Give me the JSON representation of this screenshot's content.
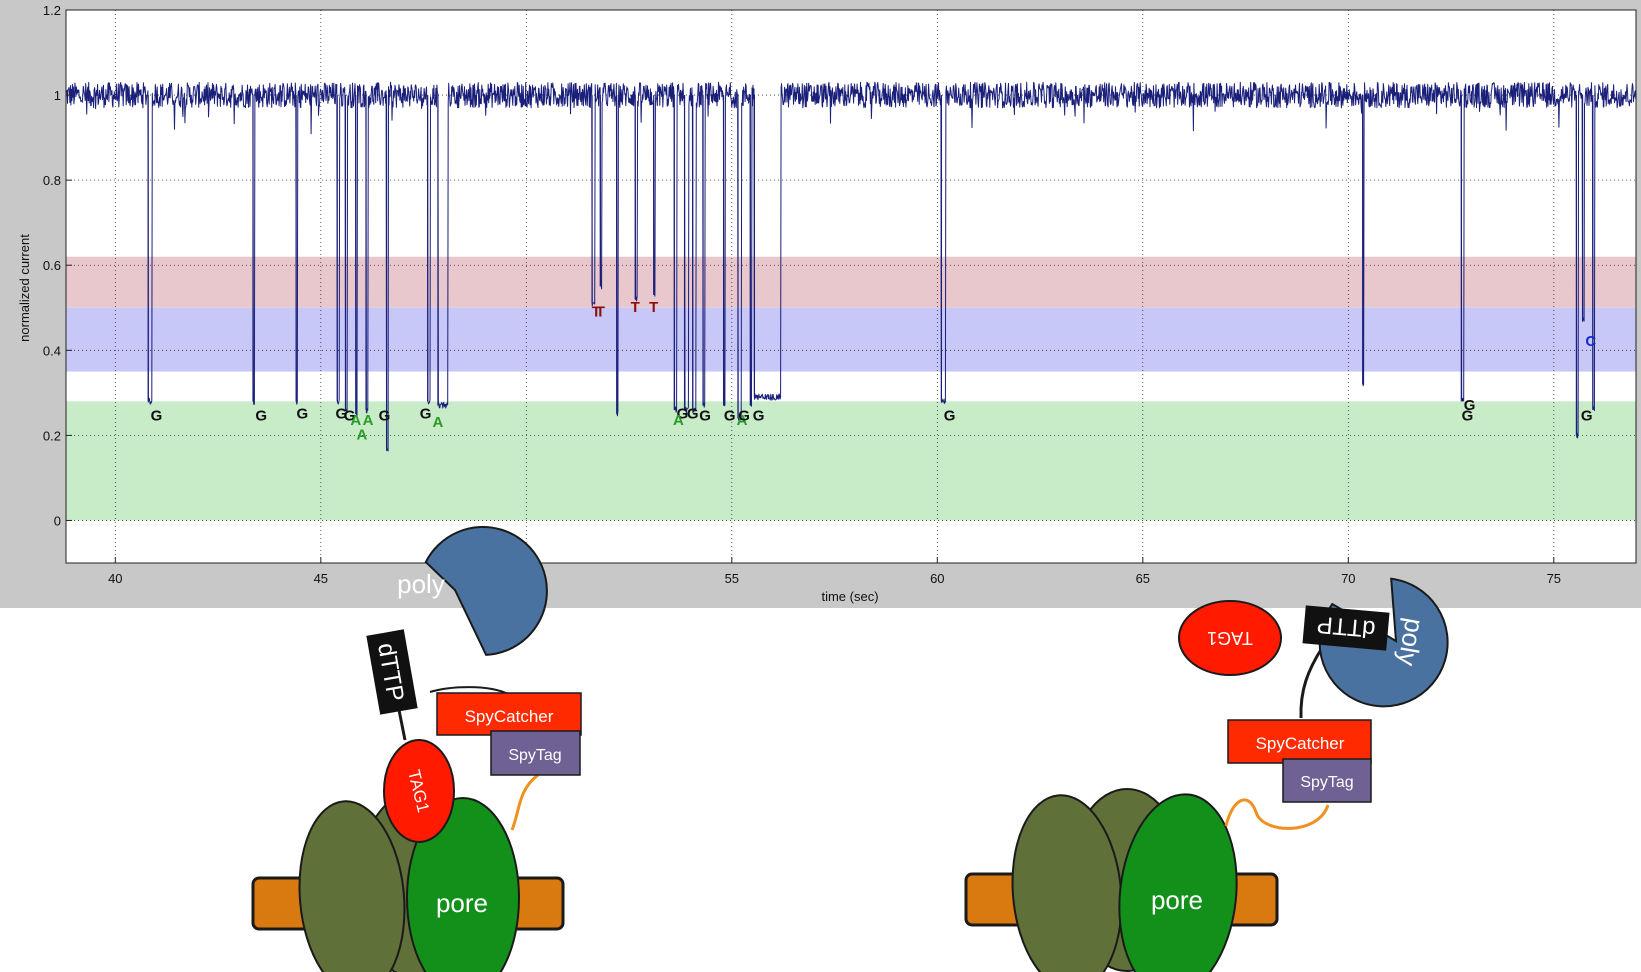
{
  "chart_data": {
    "type": "line",
    "title": "",
    "xlabel": "time (sec)",
    "ylabel": "normalized current",
    "xlim": [
      38.8,
      77
    ],
    "ylim": [
      -0.1,
      1.2
    ],
    "xticks": [
      40,
      45,
      50,
      55,
      60,
      65,
      70,
      75
    ],
    "yticks": [
      0,
      0.2,
      0.4,
      0.6,
      0.8,
      1,
      1.2
    ],
    "grid": true,
    "series": [
      {
        "color": "#1a1f7a",
        "baseline": 1.0,
        "noise": 0.03
      }
    ],
    "bands": [
      {
        "y0": 0.5,
        "y1": 0.62,
        "color": "#e8c8cc"
      },
      {
        "y0": 0.35,
        "y1": 0.5,
        "color": "#c8c8f8"
      },
      {
        "y0": 0.0,
        "y1": 0.28,
        "color": "#c8ebc8"
      }
    ],
    "blockades": [
      {
        "t": 40.8,
        "w": 0.1,
        "y": 0.28
      },
      {
        "t": 43.35,
        "w": 0.04,
        "y": 0.28
      },
      {
        "t": 44.4,
        "w": 0.03,
        "y": 0.28
      },
      {
        "t": 45.4,
        "w": 0.05,
        "y": 0.28
      },
      {
        "t": 45.6,
        "w": 0.05,
        "y": 0.26
      },
      {
        "t": 45.85,
        "w": 0.04,
        "y": 0.25
      },
      {
        "t": 46.1,
        "w": 0.05,
        "y": 0.26
      },
      {
        "t": 46.6,
        "w": 0.04,
        "y": 0.17
      },
      {
        "t": 47.6,
        "w": 0.06,
        "y": 0.28
      },
      {
        "t": 47.85,
        "w": 0.25,
        "y": 0.27
      },
      {
        "t": 51.6,
        "w": 0.07,
        "y": 0.51
      },
      {
        "t": 51.8,
        "w": 0.04,
        "y": 0.55
      },
      {
        "t": 52.2,
        "w": 0.04,
        "y": 0.25
      },
      {
        "t": 52.65,
        "w": 0.05,
        "y": 0.52
      },
      {
        "t": 53.1,
        "w": 0.04,
        "y": 0.53
      },
      {
        "t": 53.6,
        "w": 0.06,
        "y": 0.26
      },
      {
        "t": 53.85,
        "w": 0.1,
        "y": 0.26
      },
      {
        "t": 54.05,
        "w": 0.08,
        "y": 0.26
      },
      {
        "t": 54.3,
        "w": 0.05,
        "y": 0.27
      },
      {
        "t": 54.8,
        "w": 0.04,
        "y": 0.27
      },
      {
        "t": 55.15,
        "w": 0.08,
        "y": 0.24
      },
      {
        "t": 55.45,
        "w": 0.04,
        "y": 0.27
      },
      {
        "t": 55.55,
        "w": 0.65,
        "y": 0.29
      },
      {
        "t": 60.1,
        "w": 0.1,
        "y": 0.28
      },
      {
        "t": 70.35,
        "w": 0.03,
        "y": 0.32
      },
      {
        "t": 72.75,
        "w": 0.06,
        "y": 0.28
      },
      {
        "t": 75.55,
        "w": 0.05,
        "y": 0.2
      },
      {
        "t": 75.7,
        "w": 0.04,
        "y": 0.47
      },
      {
        "t": 75.95,
        "w": 0.04,
        "y": 0.26
      }
    ],
    "annotations": [
      {
        "text": "G",
        "x": 41.0,
        "y": 0.235,
        "color": "#111111"
      },
      {
        "text": "G",
        "x": 43.55,
        "y": 0.235,
        "color": "#111111"
      },
      {
        "text": "G",
        "x": 44.55,
        "y": 0.24,
        "color": "#111111"
      },
      {
        "text": "G",
        "x": 45.5,
        "y": 0.24,
        "color": "#111111"
      },
      {
        "text": "G",
        "x": 45.7,
        "y": 0.235,
        "color": "#111111"
      },
      {
        "text": "A",
        "x": 45.85,
        "y": 0.225,
        "color": "#2a9a2a"
      },
      {
        "text": "A",
        "x": 46.15,
        "y": 0.225,
        "color": "#2a9a2a"
      },
      {
        "text": "A",
        "x": 46.0,
        "y": 0.19,
        "color": "#2a9a2a"
      },
      {
        "text": "G",
        "x": 46.55,
        "y": 0.235,
        "color": "#111111"
      },
      {
        "text": "G",
        "x": 47.55,
        "y": 0.24,
        "color": "#111111"
      },
      {
        "text": "A",
        "x": 47.85,
        "y": 0.22,
        "color": "#2a9a2a"
      },
      {
        "text": "T",
        "x": 51.7,
        "y": 0.48,
        "color": "#8a1010"
      },
      {
        "text": "T",
        "x": 51.8,
        "y": 0.48,
        "color": "#8a1010"
      },
      {
        "text": "T",
        "x": 52.65,
        "y": 0.49,
        "color": "#8a1010"
      },
      {
        "text": "T",
        "x": 53.1,
        "y": 0.49,
        "color": "#8a1010"
      },
      {
        "text": "G",
        "x": 53.8,
        "y": 0.24,
        "color": "#111111"
      },
      {
        "text": "A",
        "x": 53.7,
        "y": 0.225,
        "color": "#2a9a2a"
      },
      {
        "text": "G",
        "x": 54.05,
        "y": 0.24,
        "color": "#111111"
      },
      {
        "text": "G",
        "x": 54.35,
        "y": 0.235,
        "color": "#111111"
      },
      {
        "text": "G",
        "x": 54.95,
        "y": 0.235,
        "color": "#111111"
      },
      {
        "text": "A",
        "x": 55.25,
        "y": 0.225,
        "color": "#2a9a2a"
      },
      {
        "text": "G",
        "x": 55.3,
        "y": 0.235,
        "color": "#111111"
      },
      {
        "text": "G",
        "x": 55.65,
        "y": 0.235,
        "color": "#111111"
      },
      {
        "text": "G",
        "x": 60.3,
        "y": 0.235,
        "color": "#111111"
      },
      {
        "text": "G",
        "x": 72.95,
        "y": 0.26,
        "color": "#111111"
      },
      {
        "text": "G",
        "x": 72.9,
        "y": 0.235,
        "color": "#111111"
      },
      {
        "text": "C",
        "x": 75.9,
        "y": 0.41,
        "color": "#1a2ad0"
      },
      {
        "text": "G",
        "x": 75.8,
        "y": 0.235,
        "color": "#111111"
      }
    ]
  },
  "diagrams": {
    "left": {
      "poly": "poly",
      "dttp": "dTTP",
      "spycatcher": "SpyCatcher",
      "spytag": "SpyTag",
      "tag": "TAG1",
      "pore": "pore"
    },
    "right": {
      "poly": "poly",
      "dttp": "dTTP",
      "spycatcher": "SpyCatcher",
      "spytag": "SpyTag",
      "tag": "TAG1",
      "pore": "pore"
    }
  },
  "colors": {
    "figure_bg": "#c8c8c8",
    "plot_bg": "#ffffff",
    "trace": "#1a1f7a",
    "poly": "#4a72a0",
    "spycatcher": "#ff2a00",
    "spytag": "#6f6193",
    "tag": "#ff1a00",
    "pore": "#12901a",
    "subunit": "#5f7038",
    "membrane": "#d97a10",
    "linker": "#f09020"
  }
}
